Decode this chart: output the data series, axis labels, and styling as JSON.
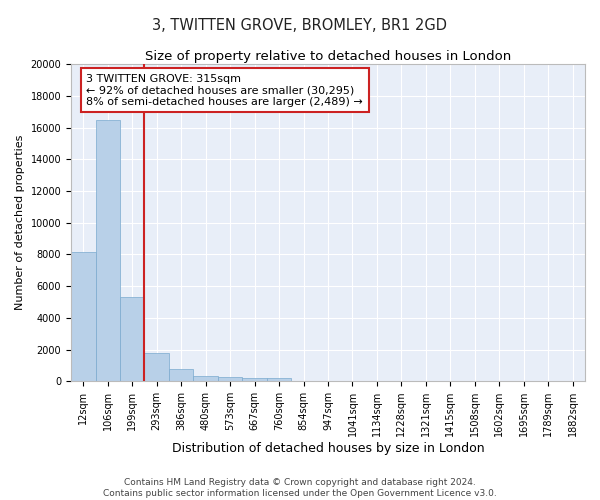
{
  "title": "3, TWITTEN GROVE, BROMLEY, BR1 2GD",
  "subtitle": "Size of property relative to detached houses in London",
  "xlabel": "Distribution of detached houses by size in London",
  "ylabel": "Number of detached properties",
  "categories": [
    "12sqm",
    "106sqm",
    "199sqm",
    "293sqm",
    "386sqm",
    "480sqm",
    "573sqm",
    "667sqm",
    "760sqm",
    "854sqm",
    "947sqm",
    "1041sqm",
    "1134sqm",
    "1228sqm",
    "1321sqm",
    "1415sqm",
    "1508sqm",
    "1602sqm",
    "1695sqm",
    "1789sqm",
    "1882sqm"
  ],
  "values": [
    8150,
    16500,
    5300,
    1750,
    780,
    340,
    270,
    230,
    200,
    0,
    0,
    0,
    0,
    0,
    0,
    0,
    0,
    0,
    0,
    0,
    0
  ],
  "bar_color": "#b8d0e8",
  "bar_edge_color": "#7aaace",
  "vline_x": 2.5,
  "vline_color": "#cc2222",
  "annotation_text": "3 TWITTEN GROVE: 315sqm\n← 92% of detached houses are smaller (30,295)\n8% of semi-detached houses are larger (2,489) →",
  "annotation_box_color": "#ffffff",
  "annotation_box_edge": "#cc2222",
  "ylim": [
    0,
    20000
  ],
  "yticks": [
    0,
    2000,
    4000,
    6000,
    8000,
    10000,
    12000,
    14000,
    16000,
    18000,
    20000
  ],
  "background_color": "#e8eef8",
  "grid_color": "#ffffff",
  "footer": "Contains HM Land Registry data © Crown copyright and database right 2024.\nContains public sector information licensed under the Open Government Licence v3.0.",
  "title_fontsize": 10.5,
  "subtitle_fontsize": 9.5,
  "xlabel_fontsize": 9,
  "ylabel_fontsize": 8,
  "tick_fontsize": 7,
  "annotation_fontsize": 8,
  "footer_fontsize": 6.5
}
